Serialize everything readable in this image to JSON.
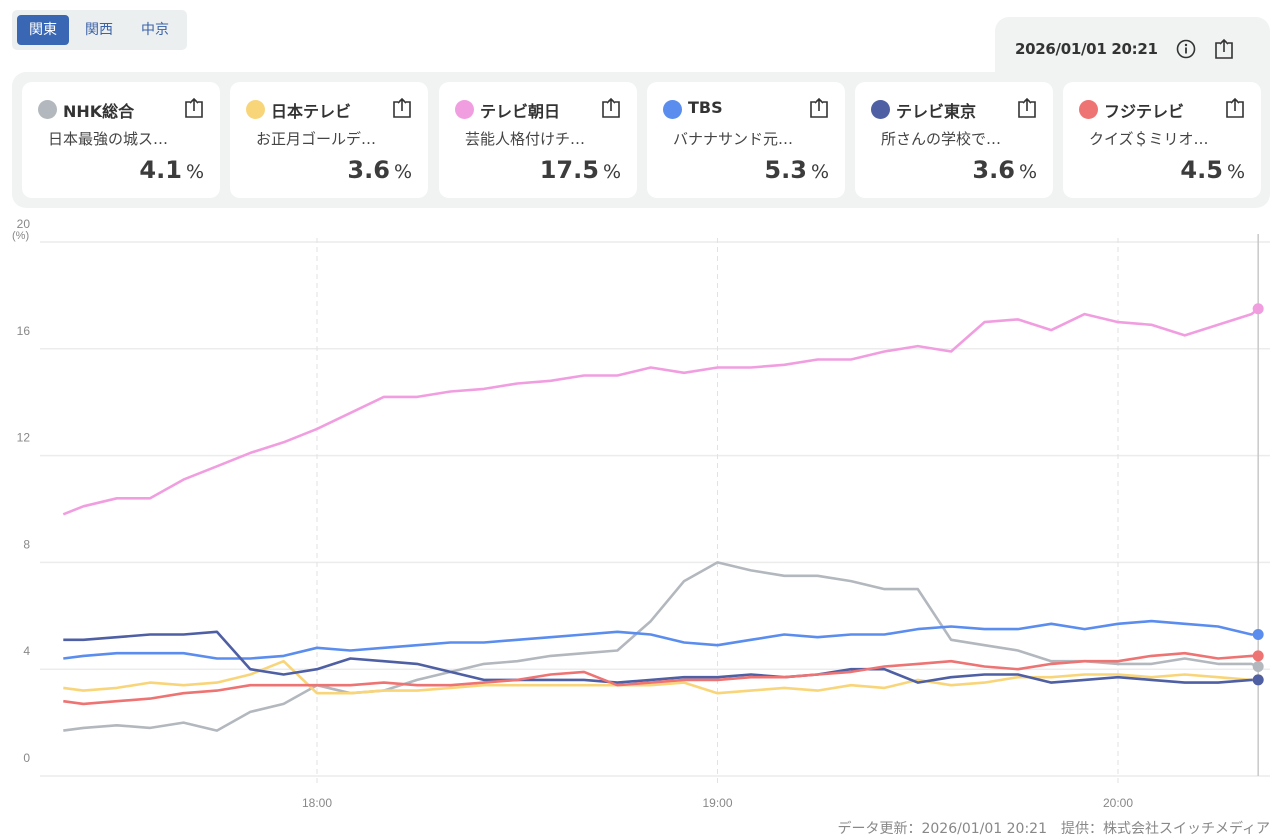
{
  "regions": [
    {
      "label": "関東",
      "active": true
    },
    {
      "label": "関西",
      "active": false
    },
    {
      "label": "中京",
      "active": false
    }
  ],
  "timestamp": "2026/01/01 20:21",
  "stations": [
    {
      "name": "NHK総合",
      "program": "日本最強の城ス…",
      "rating": "4.1",
      "unit": "%",
      "color": "#b3b8be"
    },
    {
      "name": "日本テレビ",
      "program": "お正月ゴールデ…",
      "rating": "3.6",
      "unit": "%",
      "color": "#f9d57a"
    },
    {
      "name": "テレビ朝日",
      "program": "芸能人格付けチ…",
      "rating": "17.5",
      "unit": "%",
      "color": "#f19ee0"
    },
    {
      "name": "TBS",
      "program": "バナナサンド元…",
      "rating": "5.3",
      "unit": "%",
      "color": "#5b8def"
    },
    {
      "name": "テレビ東京",
      "program": "所さんの学校で…",
      "rating": "3.6",
      "unit": "%",
      "color": "#4e5fa3"
    },
    {
      "name": "フジテレビ",
      "program": "クイズ＄ミリオ…",
      "rating": "4.5",
      "unit": "%",
      "color": "#ee7373"
    }
  ],
  "footer": "データ更新：2026/01/01 20:21　提供：株式会社スイッチメディア",
  "chart_data": {
    "type": "line",
    "ylabel": "(%)",
    "ylim": [
      0,
      20
    ],
    "yticks": [
      "0",
      "4",
      "8",
      "12",
      "16",
      "20"
    ],
    "xticks": [
      "18:00",
      "19:00",
      "20:00"
    ],
    "grid": true,
    "x": [
      "17:22",
      "17:25",
      "17:30",
      "17:35",
      "17:40",
      "17:45",
      "17:50",
      "17:55",
      "18:00",
      "18:05",
      "18:10",
      "18:15",
      "18:20",
      "18:25",
      "18:30",
      "18:35",
      "18:40",
      "18:45",
      "18:50",
      "18:55",
      "19:00",
      "19:05",
      "19:10",
      "19:15",
      "19:20",
      "19:25",
      "19:30",
      "19:35",
      "19:40",
      "19:45",
      "19:50",
      "19:55",
      "20:00",
      "20:05",
      "20:10",
      "20:15",
      "20:20",
      "20:21"
    ],
    "series": [
      {
        "name": "NHK総合",
        "color": "#b3b8be",
        "values": [
          1.7,
          1.8,
          1.9,
          1.8,
          2.0,
          1.7,
          2.4,
          2.7,
          3.4,
          3.1,
          3.2,
          3.6,
          3.9,
          4.2,
          4.3,
          4.5,
          4.6,
          4.7,
          5.8,
          7.3,
          8.0,
          7.7,
          7.5,
          7.5,
          7.3,
          7.0,
          7.0,
          5.1,
          4.9,
          4.7,
          4.3,
          4.3,
          4.2,
          4.2,
          4.4,
          4.2,
          4.2,
          4.1
        ]
      },
      {
        "name": "日本テレビ",
        "color": "#f9d57a",
        "values": [
          3.3,
          3.2,
          3.3,
          3.5,
          3.4,
          3.5,
          3.8,
          4.3,
          3.1,
          3.1,
          3.2,
          3.2,
          3.3,
          3.4,
          3.4,
          3.4,
          3.4,
          3.4,
          3.4,
          3.5,
          3.1,
          3.2,
          3.3,
          3.2,
          3.4,
          3.3,
          3.6,
          3.4,
          3.5,
          3.7,
          3.7,
          3.8,
          3.8,
          3.7,
          3.8,
          3.7,
          3.6,
          3.6
        ]
      },
      {
        "name": "テレビ朝日",
        "color": "#f19ee0",
        "values": [
          9.8,
          10.1,
          10.4,
          10.4,
          11.1,
          11.6,
          12.1,
          12.5,
          13.0,
          13.6,
          14.2,
          14.2,
          14.4,
          14.5,
          14.7,
          14.8,
          15.0,
          15.0,
          15.3,
          15.1,
          15.3,
          15.3,
          15.4,
          15.6,
          15.6,
          15.9,
          16.1,
          15.9,
          17.0,
          17.1,
          16.7,
          17.3,
          17.0,
          16.9,
          16.5,
          16.9,
          17.3,
          17.5
        ]
      },
      {
        "name": "TBS",
        "color": "#5b8def",
        "values": [
          4.4,
          4.5,
          4.6,
          4.6,
          4.6,
          4.4,
          4.4,
          4.5,
          4.8,
          4.7,
          4.8,
          4.9,
          5.0,
          5.0,
          5.1,
          5.2,
          5.3,
          5.4,
          5.3,
          5.0,
          4.9,
          5.1,
          5.3,
          5.2,
          5.3,
          5.3,
          5.5,
          5.6,
          5.5,
          5.5,
          5.7,
          5.5,
          5.7,
          5.8,
          5.7,
          5.6,
          5.3,
          5.3
        ]
      },
      {
        "name": "テレビ東京",
        "color": "#4e5fa3",
        "values": [
          5.1,
          5.1,
          5.2,
          5.3,
          5.3,
          5.4,
          4.0,
          3.8,
          4.0,
          4.4,
          4.3,
          4.2,
          3.9,
          3.6,
          3.6,
          3.6,
          3.6,
          3.5,
          3.6,
          3.7,
          3.7,
          3.8,
          3.7,
          3.8,
          4.0,
          4.0,
          3.5,
          3.7,
          3.8,
          3.8,
          3.5,
          3.6,
          3.7,
          3.6,
          3.5,
          3.5,
          3.6,
          3.6
        ]
      },
      {
        "name": "フジテレビ",
        "color": "#ee7373",
        "values": [
          2.8,
          2.7,
          2.8,
          2.9,
          3.1,
          3.2,
          3.4,
          3.4,
          3.4,
          3.4,
          3.5,
          3.4,
          3.4,
          3.5,
          3.6,
          3.8,
          3.9,
          3.4,
          3.5,
          3.6,
          3.6,
          3.7,
          3.7,
          3.8,
          3.9,
          4.1,
          4.2,
          4.3,
          4.1,
          4.0,
          4.2,
          4.3,
          4.3,
          4.5,
          4.6,
          4.4,
          4.5,
          4.5
        ]
      }
    ]
  }
}
